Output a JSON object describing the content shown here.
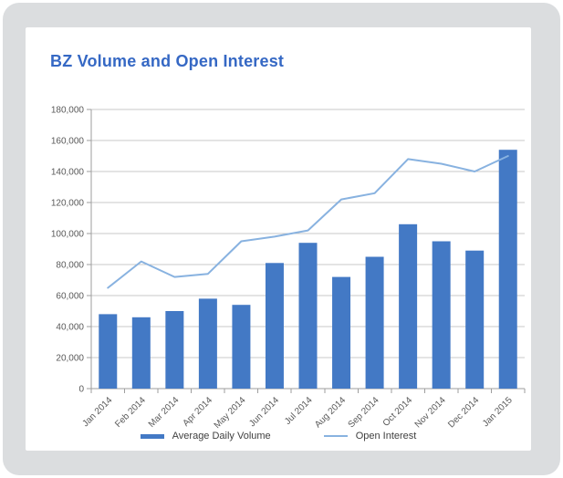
{
  "chart_data": {
    "type": "combo",
    "title": "BZ Volume and Open Interest",
    "categories": [
      "Jan 2014",
      "Feb 2014",
      "Mar 2014",
      "Apr 2014",
      "May 2014",
      "Jun 2014",
      "Jul 2014",
      "Aug 2014",
      "Sep 2014",
      "Oct 2014",
      "Nov 2014",
      "Dec 2014",
      "Jan 2015"
    ],
    "series": [
      {
        "name": "Average Daily Volume",
        "type": "bar",
        "color": "#4379c5",
        "values": [
          48000,
          46000,
          50000,
          58000,
          54000,
          81000,
          94000,
          72000,
          85000,
          106000,
          95000,
          89000,
          154000
        ]
      },
      {
        "name": "Open Interest",
        "type": "line",
        "color": "#88b2e0",
        "values": [
          65000,
          82000,
          72000,
          74000,
          95000,
          98000,
          102000,
          122000,
          126000,
          148000,
          145000,
          140000,
          150000
        ]
      }
    ],
    "xlabel": "",
    "ylabel": "",
    "ylim": [
      0,
      180000
    ],
    "ytick_step": 20000,
    "ytick_labels": [
      "0",
      "20,000",
      "40,000",
      "60,000",
      "80,000",
      "100,000",
      "120,000",
      "140,000",
      "160,000",
      "180,000"
    ],
    "grid": true,
    "legend_position": "bottom"
  },
  "colors": {
    "title": "#3568c4",
    "frame": "#dbdddf",
    "card": "#ffffff",
    "gridline": "#c9c9c9",
    "axis": "#9e9e9e",
    "tick_text": "#595959",
    "legend_text": "#404040"
  }
}
